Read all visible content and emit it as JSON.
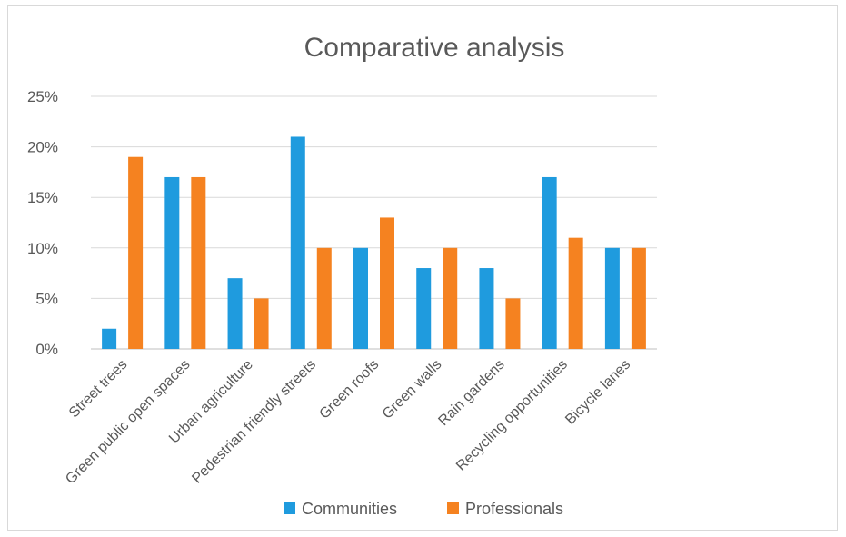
{
  "chart_data": {
    "type": "bar",
    "title": "Comparative analysis",
    "categories": [
      "Street trees",
      "Green public open spaces",
      "Urban agriculture",
      "Pedestrian friendly streets",
      "Green roofs",
      "Green walls",
      "Rain gardens",
      "Recycling opportunities",
      "Bicycle lanes"
    ],
    "series": [
      {
        "name": "Communities",
        "color": "#1f9bde",
        "values": [
          2,
          17,
          7,
          21,
          10,
          8,
          8,
          17,
          10
        ]
      },
      {
        "name": "Professionals",
        "color": "#f58220",
        "values": [
          19,
          17,
          5,
          10,
          13,
          10,
          5,
          11,
          10
        ]
      }
    ],
    "yticks": [
      "0%",
      "5%",
      "10%",
      "15%",
      "20%",
      "25%"
    ],
    "ylim": [
      0,
      25
    ],
    "grid": true,
    "legend_position": "bottom"
  }
}
